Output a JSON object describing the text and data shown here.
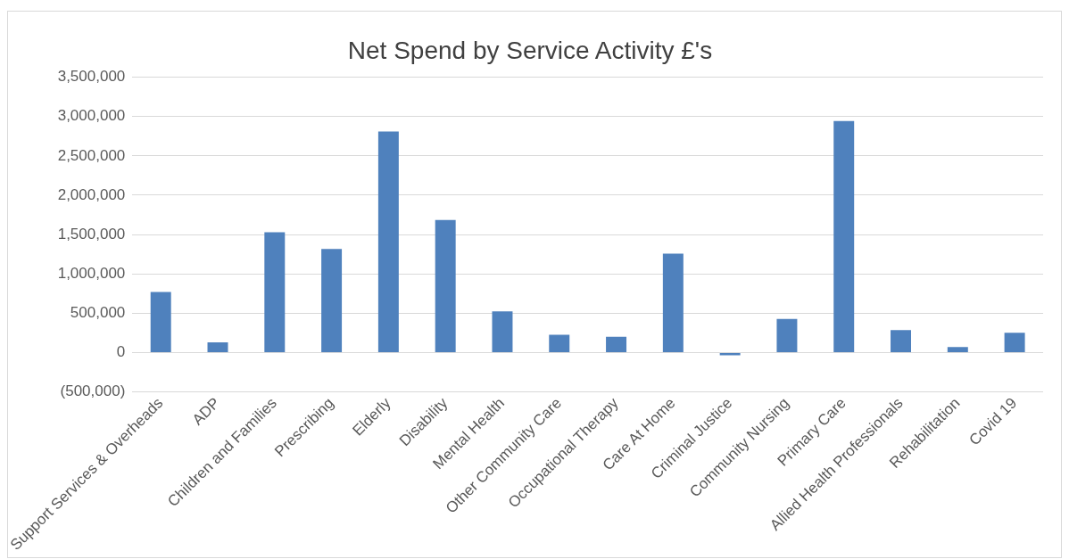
{
  "chart_data": {
    "type": "bar",
    "title": "Net Spend by Service Activity £'s",
    "categories": [
      "Support Services & Overheads",
      "ADP",
      "Children and Families",
      "Prescribing",
      "Elderly",
      "Disability",
      "Mental Health",
      "Other Community Care",
      "Occupational Therapy",
      "Care At Home",
      "Criminal Justice",
      "Community Nursing",
      "Primary Care",
      "Allied Health Professionals",
      "Rehabilitation",
      "Covid 19"
    ],
    "values": [
      770000,
      130000,
      1530000,
      1317000,
      2810000,
      1685000,
      522000,
      225000,
      200000,
      1258000,
      -35000,
      427000,
      2943000,
      285000,
      70000,
      250000
    ],
    "color": "#4f81bd",
    "ylim": [
      -500000,
      3500000
    ],
    "yticks": [
      {
        "value": -500000,
        "label": "(500,000)"
      },
      {
        "value": 0,
        "label": "0"
      },
      {
        "value": 500000,
        "label": "500,000"
      },
      {
        "value": 1000000,
        "label": "1,000,000"
      },
      {
        "value": 1500000,
        "label": "1,500,000"
      },
      {
        "value": 2000000,
        "label": "2,000,000"
      },
      {
        "value": 2500000,
        "label": "2,500,000"
      },
      {
        "value": 3000000,
        "label": "3,000,000"
      },
      {
        "value": 3500000,
        "label": "3,500,000"
      }
    ],
    "grid": "y"
  }
}
